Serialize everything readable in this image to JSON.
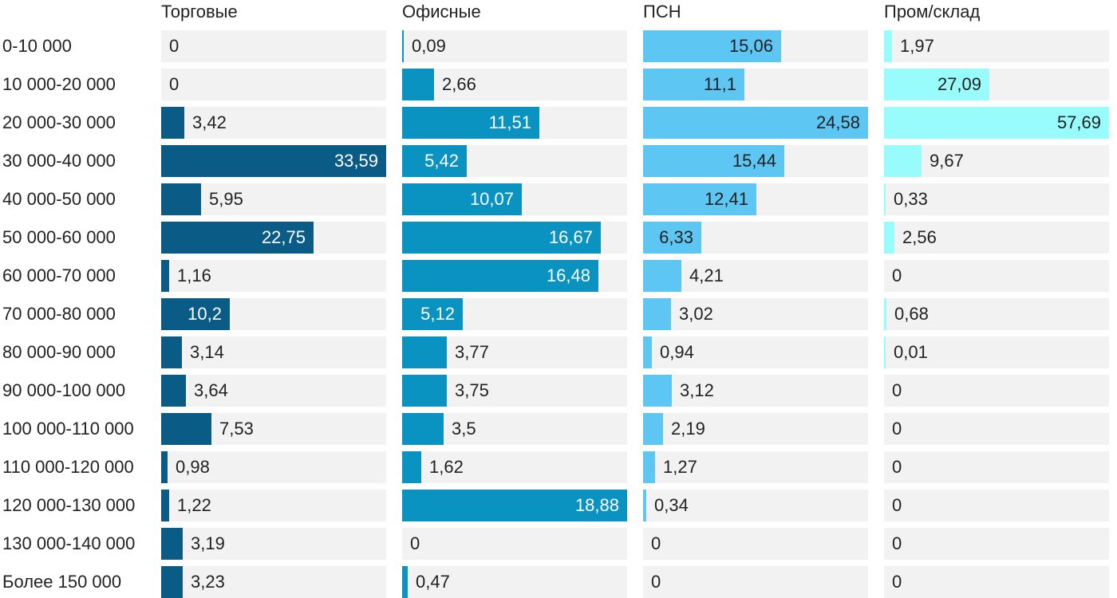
{
  "chart_data": {
    "type": "bar",
    "orientation": "horizontal",
    "layout": "small-multiples",
    "categories": [
      "0-10 000",
      "10 000-20 000",
      "20 000-30 000",
      "30 000-40 000",
      "40 000-50 000",
      "50 000-60 000",
      "60 000-70 000",
      "70 000-80 000",
      "80 000-90 000",
      "90 000-100 000",
      "100 000-110 000",
      "110 000-120 000",
      "120 000-130 000",
      "130 000-140 000",
      "Более 150 000"
    ],
    "series": [
      {
        "name": "Торговые",
        "color": "#0a5c87",
        "label_inside_color": "#ffffff",
        "max": 33.59,
        "values": [
          0,
          0,
          3.42,
          33.59,
          5.95,
          22.75,
          1.16,
          10.2,
          3.14,
          3.64,
          7.53,
          0.98,
          1.22,
          3.19,
          3.23
        ],
        "labels": [
          "0",
          "0",
          "3,42",
          "33,59",
          "5,95",
          "22,75",
          "1,16",
          "10,2",
          "3,14",
          "3,64",
          "7,53",
          "0,98",
          "1,22",
          "3,19",
          "3,23"
        ]
      },
      {
        "name": "Офисные",
        "color": "#0a92c0",
        "label_inside_color": "#ffffff",
        "max": 18.88,
        "values": [
          0.09,
          2.66,
          11.51,
          5.42,
          10.07,
          16.67,
          16.48,
          5.12,
          3.77,
          3.75,
          3.5,
          1.62,
          18.88,
          0,
          0.47
        ],
        "labels": [
          "0,09",
          "2,66",
          "11,51",
          "5,42",
          "10,07",
          "16,67",
          "16,48",
          "5,12",
          "3,77",
          "3,75",
          "3,5",
          "1,62",
          "18,88",
          "0",
          "0,47"
        ]
      },
      {
        "name": "ПСН",
        "color": "#5ec6f2",
        "label_inside_color": "#222222",
        "max": 24.58,
        "values": [
          15.06,
          11.1,
          24.58,
          15.44,
          12.41,
          6.33,
          4.21,
          3.02,
          0.94,
          3.12,
          2.19,
          1.27,
          0.34,
          0,
          0
        ],
        "labels": [
          "15,06",
          "11,1",
          "24,58",
          "15,44",
          "12,41",
          "6,33",
          "4,21",
          "3,02",
          "0,94",
          "3,12",
          "2,19",
          "1,27",
          "0,34",
          "0",
          "0"
        ]
      },
      {
        "name": "Пром/склад",
        "color": "#98fbfc",
        "label_inside_color": "#222222",
        "max": 57.69,
        "values": [
          1.97,
          27.09,
          57.69,
          9.67,
          0.33,
          2.56,
          0,
          0.68,
          0.01,
          0,
          0,
          0,
          0,
          0,
          0
        ],
        "labels": [
          "1,97",
          "27,09",
          "57,69",
          "9,67",
          "0,33",
          "2,56",
          "0",
          "0,68",
          "0,01",
          "0",
          "0",
          "0",
          "0",
          "0",
          "0"
        ]
      }
    ],
    "title": "",
    "xlabel": "",
    "ylabel": "",
    "grid": false,
    "legend": "none"
  }
}
